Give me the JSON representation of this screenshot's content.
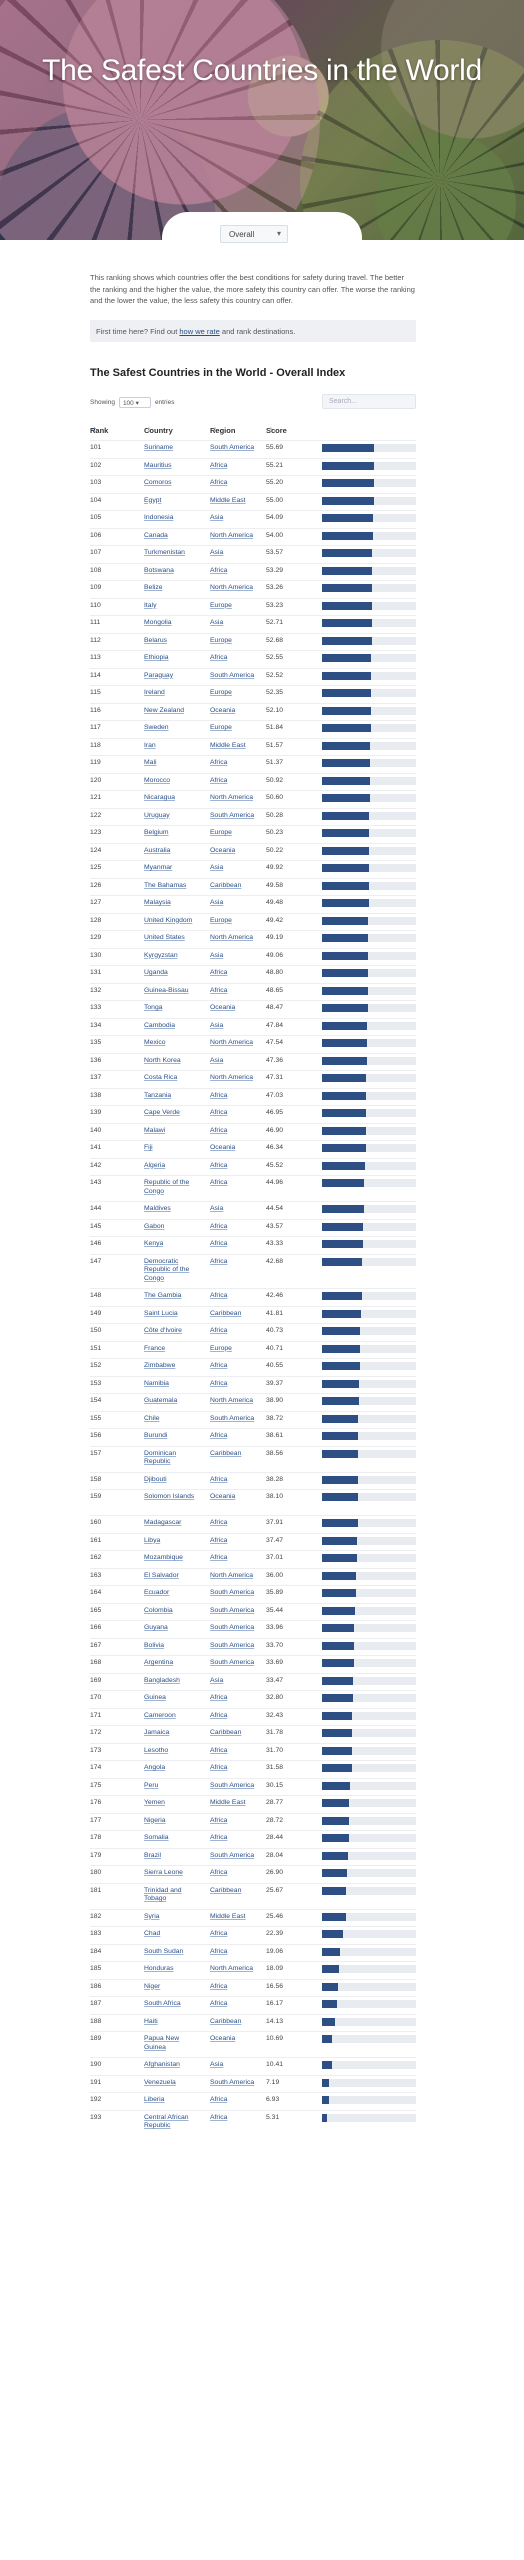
{
  "hero": {
    "title": "The Safest Countries in the World"
  },
  "filter": {
    "selected": "Overall"
  },
  "intro": {
    "text": "This ranking shows which countries offer the best conditions for safety during travel. The better the ranking and the higher the value, the more safety this country can offer. The worse the ranking and the lower the value, the less safety this country can offer.",
    "note_prefix": "First time here? Find out ",
    "note_link": "how we rate",
    "note_suffix": " and rank destinations."
  },
  "table": {
    "title": "The Safest Countries in the World - Overall Index",
    "showing_label": "Showing",
    "entries_value": "100",
    "entries_label": "entries",
    "search_placeholder": "Search...",
    "columns": {
      "rank": "Rank",
      "country": "Country",
      "region": "Region",
      "score": "Score"
    },
    "max_score": 100,
    "rows": [
      {
        "rank": "101",
        "country": "Suriname",
        "region": "South America",
        "score": "55.69"
      },
      {
        "rank": "102",
        "country": "Mauritius",
        "region": "Africa",
        "score": "55.21"
      },
      {
        "rank": "103",
        "country": "Comoros",
        "region": "Africa",
        "score": "55.20"
      },
      {
        "rank": "104",
        "country": "Egypt",
        "region": "Middle East",
        "score": "55.00"
      },
      {
        "rank": "105",
        "country": "Indonesia",
        "region": "Asia",
        "score": "54.09"
      },
      {
        "rank": "106",
        "country": "Canada",
        "region": "North America",
        "score": "54.00"
      },
      {
        "rank": "107",
        "country": "Turkmenistan",
        "region": "Asia",
        "score": "53.57"
      },
      {
        "rank": "108",
        "country": "Botswana",
        "region": "Africa",
        "score": "53.29"
      },
      {
        "rank": "109",
        "country": "Belize",
        "region": "North America",
        "score": "53.26"
      },
      {
        "rank": "110",
        "country": "Italy",
        "region": "Europe",
        "score": "53.23"
      },
      {
        "rank": "111",
        "country": "Mongolia",
        "region": "Asia",
        "score": "52.71"
      },
      {
        "rank": "112",
        "country": "Belarus",
        "region": "Europe",
        "score": "52.68"
      },
      {
        "rank": "113",
        "country": "Ethiopia",
        "region": "Africa",
        "score": "52.55"
      },
      {
        "rank": "114",
        "country": "Paraguay",
        "region": "South America",
        "score": "52.52"
      },
      {
        "rank": "115",
        "country": "Ireland",
        "region": "Europe",
        "score": "52.35"
      },
      {
        "rank": "116",
        "country": "New Zealand",
        "region": "Oceania",
        "score": "52.10"
      },
      {
        "rank": "117",
        "country": "Sweden",
        "region": "Europe",
        "score": "51.84"
      },
      {
        "rank": "118",
        "country": "Iran",
        "region": "Middle East",
        "score": "51.57"
      },
      {
        "rank": "119",
        "country": "Mali",
        "region": "Africa",
        "score": "51.37"
      },
      {
        "rank": "120",
        "country": "Morocco",
        "region": "Africa",
        "score": "50.92"
      },
      {
        "rank": "121",
        "country": "Nicaragua",
        "region": "North America",
        "score": "50.60"
      },
      {
        "rank": "122",
        "country": "Uruguay",
        "region": "South America",
        "score": "50.28"
      },
      {
        "rank": "123",
        "country": "Belgium",
        "region": "Europe",
        "score": "50.23"
      },
      {
        "rank": "124",
        "country": "Australia",
        "region": "Oceania",
        "score": "50.22"
      },
      {
        "rank": "125",
        "country": "Myanmar",
        "region": "Asia",
        "score": "49.92"
      },
      {
        "rank": "126",
        "country": "The Bahamas",
        "region": "Caribbean",
        "score": "49.58"
      },
      {
        "rank": "127",
        "country": "Malaysia",
        "region": "Asia",
        "score": "49.48"
      },
      {
        "rank": "128",
        "country": "United Kingdom",
        "region": "Europe",
        "score": "49.42"
      },
      {
        "rank": "129",
        "country": "United States",
        "region": "North America",
        "score": "49.19"
      },
      {
        "rank": "130",
        "country": "Kyrgyzstan",
        "region": "Asia",
        "score": "49.06"
      },
      {
        "rank": "131",
        "country": "Uganda",
        "region": "Africa",
        "score": "48.80"
      },
      {
        "rank": "132",
        "country": "Guinea-Bissau",
        "region": "Africa",
        "score": "48.65"
      },
      {
        "rank": "133",
        "country": "Tonga",
        "region": "Oceania",
        "score": "48.47"
      },
      {
        "rank": "134",
        "country": "Cambodia",
        "region": "Asia",
        "score": "47.84"
      },
      {
        "rank": "135",
        "country": "Mexico",
        "region": "North America",
        "score": "47.54"
      },
      {
        "rank": "136",
        "country": "North Korea",
        "region": "Asia",
        "score": "47.36"
      },
      {
        "rank": "137",
        "country": "Costa Rica",
        "region": "North America",
        "score": "47.31"
      },
      {
        "rank": "138",
        "country": "Tanzania",
        "region": "Africa",
        "score": "47.03"
      },
      {
        "rank": "139",
        "country": "Cape Verde",
        "region": "Africa",
        "score": "46.95"
      },
      {
        "rank": "140",
        "country": "Malawi",
        "region": "Africa",
        "score": "46.90"
      },
      {
        "rank": "141",
        "country": "Fiji",
        "region": "Oceania",
        "score": "46.34"
      },
      {
        "rank": "142",
        "country": "Algeria",
        "region": "Africa",
        "score": "45.52"
      },
      {
        "rank": "143",
        "country": "Republic of the Congo",
        "region": "Africa",
        "score": "44.96"
      },
      {
        "rank": "144",
        "country": "Maldives",
        "region": "Asia",
        "score": "44.54"
      },
      {
        "rank": "145",
        "country": "Gabon",
        "region": "Africa",
        "score": "43.57"
      },
      {
        "rank": "146",
        "country": "Kenya",
        "region": "Africa",
        "score": "43.33"
      },
      {
        "rank": "147",
        "country": "Democratic Republic of the Congo",
        "region": "Africa",
        "score": "42.68"
      },
      {
        "rank": "148",
        "country": "The Gambia",
        "region": "Africa",
        "score": "42.46"
      },
      {
        "rank": "149",
        "country": "Saint Lucia",
        "region": "Caribbean",
        "score": "41.81"
      },
      {
        "rank": "150",
        "country": "Côte d'Ivoire",
        "region": "Africa",
        "score": "40.73"
      },
      {
        "rank": "151",
        "country": "France",
        "region": "Europe",
        "score": "40.71"
      },
      {
        "rank": "152",
        "country": "Zimbabwe",
        "region": "Africa",
        "score": "40.55"
      },
      {
        "rank": "153",
        "country": "Namibia",
        "region": "Africa",
        "score": "39.37"
      },
      {
        "rank": "154",
        "country": "Guatemala",
        "region": "North America",
        "score": "38.90"
      },
      {
        "rank": "155",
        "country": "Chile",
        "region": "South America",
        "score": "38.72"
      },
      {
        "rank": "156",
        "country": "Burundi",
        "region": "Africa",
        "score": "38.61"
      },
      {
        "rank": "157",
        "country": "Dominican Republic",
        "region": "Caribbean",
        "score": "38.56"
      },
      {
        "rank": "158",
        "country": "Djibouti",
        "region": "Africa",
        "score": "38.28"
      },
      {
        "rank": "159",
        "country": "Solomon Islands",
        "region": "Oceania",
        "score": "38.10"
      },
      {
        "rank": "160",
        "country": "Madagascar",
        "region": "Africa",
        "score": "37.91"
      },
      {
        "rank": "161",
        "country": "Libya",
        "region": "Africa",
        "score": "37.47"
      },
      {
        "rank": "162",
        "country": "Mozambique",
        "region": "Africa",
        "score": "37.01"
      },
      {
        "rank": "163",
        "country": "El Salvador",
        "region": "North America",
        "score": "36.00"
      },
      {
        "rank": "164",
        "country": "Ecuador",
        "region": "South America",
        "score": "35.89"
      },
      {
        "rank": "165",
        "country": "Colombia",
        "region": "South America",
        "score": "35.44"
      },
      {
        "rank": "166",
        "country": "Guyana",
        "region": "South America",
        "score": "33.96"
      },
      {
        "rank": "167",
        "country": "Bolivia",
        "region": "South America",
        "score": "33.70"
      },
      {
        "rank": "168",
        "country": "Argentina",
        "region": "South America",
        "score": "33.69"
      },
      {
        "rank": "169",
        "country": "Bangladesh",
        "region": "Asia",
        "score": "33.47"
      },
      {
        "rank": "170",
        "country": "Guinea",
        "region": "Africa",
        "score": "32.80"
      },
      {
        "rank": "171",
        "country": "Cameroon",
        "region": "Africa",
        "score": "32.43"
      },
      {
        "rank": "172",
        "country": "Jamaica",
        "region": "Caribbean",
        "score": "31.78"
      },
      {
        "rank": "173",
        "country": "Lesotho",
        "region": "Africa",
        "score": "31.70"
      },
      {
        "rank": "174",
        "country": "Angola",
        "region": "Africa",
        "score": "31.58"
      },
      {
        "rank": "175",
        "country": "Peru",
        "region": "South America",
        "score": "30.15"
      },
      {
        "rank": "176",
        "country": "Yemen",
        "region": "Middle East",
        "score": "28.77"
      },
      {
        "rank": "177",
        "country": "Nigeria",
        "region": "Africa",
        "score": "28.72"
      },
      {
        "rank": "178",
        "country": "Somalia",
        "region": "Africa",
        "score": "28.44"
      },
      {
        "rank": "179",
        "country": "Brazil",
        "region": "South America",
        "score": "28.04"
      },
      {
        "rank": "180",
        "country": "Sierra Leone",
        "region": "Africa",
        "score": "26.90"
      },
      {
        "rank": "181",
        "country": "Trinidad and Tobago",
        "region": "Caribbean",
        "score": "25.67"
      },
      {
        "rank": "182",
        "country": "Syria",
        "region": "Middle East",
        "score": "25.46"
      },
      {
        "rank": "183",
        "country": "Chad",
        "region": "Africa",
        "score": "22.39"
      },
      {
        "rank": "184",
        "country": "South Sudan",
        "region": "Africa",
        "score": "19.06"
      },
      {
        "rank": "185",
        "country": "Honduras",
        "region": "North America",
        "score": "18.09"
      },
      {
        "rank": "186",
        "country": "Niger",
        "region": "Africa",
        "score": "16.56"
      },
      {
        "rank": "187",
        "country": "South Africa",
        "region": "Africa",
        "score": "16.17"
      },
      {
        "rank": "188",
        "country": "Haiti",
        "region": "Caribbean",
        "score": "14.13"
      },
      {
        "rank": "189",
        "country": "Papua New Guinea",
        "region": "Oceania",
        "score": "10.69"
      },
      {
        "rank": "190",
        "country": "Afghanistan",
        "region": "Asia",
        "score": "10.41"
      },
      {
        "rank": "191",
        "country": "Venezuela",
        "region": "South America",
        "score": "7.19"
      },
      {
        "rank": "192",
        "country": "Liberia",
        "region": "Africa",
        "score": "6.93"
      },
      {
        "rank": "193",
        "country": "Central African Republic",
        "region": "Africa",
        "score": "5.31"
      }
    ]
  }
}
